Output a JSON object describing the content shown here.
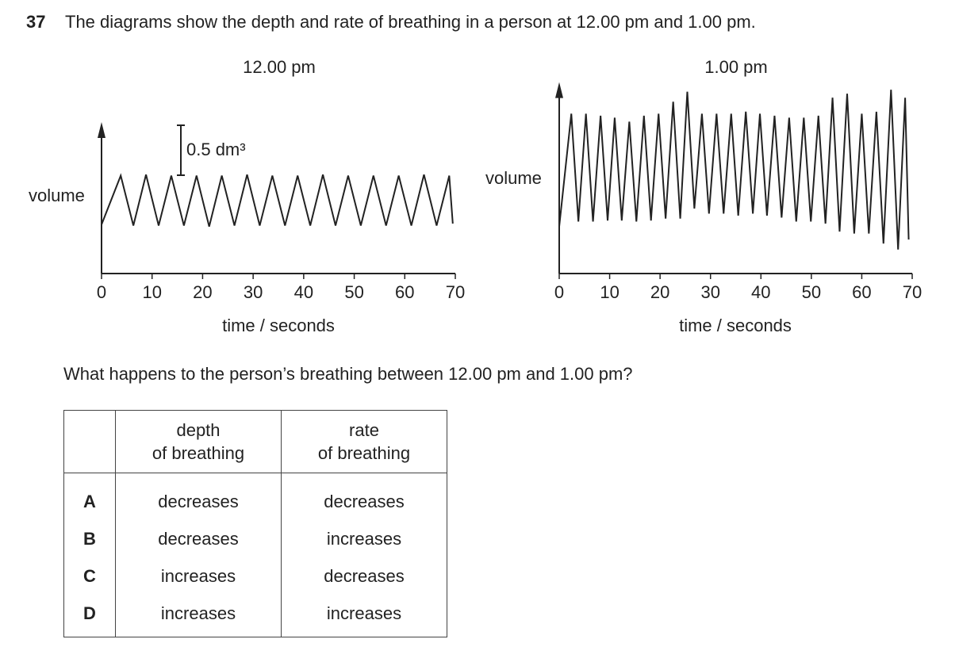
{
  "question": {
    "number": "37",
    "text": "The diagrams show the depth and rate of breathing in a person at 12.00 pm and 1.00 pm.",
    "prompt": "What happens to the person’s breathing between 12.00 pm and 1.00 pm?"
  },
  "chart_data": [
    {
      "type": "line",
      "title": "12.00 pm",
      "y_label": "volume",
      "x_label": "time / seconds",
      "xlim": [
        0,
        70
      ],
      "xticks": [
        0,
        10,
        20,
        30,
        40,
        50,
        60,
        70
      ],
      "ylim": [
        0,
        1.5
      ],
      "scale_bar": {
        "value": 0.5,
        "label": "0.5 dm³"
      },
      "series": [
        {
          "color": "#222222",
          "x": [
            0,
            3.8,
            6.3,
            8.8,
            11.3,
            13.8,
            16.3,
            18.8,
            21.3,
            23.8,
            26.3,
            28.8,
            31.3,
            33.8,
            36.3,
            38.8,
            41.3,
            43.8,
            46.3,
            48.8,
            51.3,
            53.8,
            56.3,
            58.8,
            61.3,
            63.8,
            66.3,
            68.8,
            69.5
          ],
          "values": [
            0.49,
            0.98,
            0.48,
            0.99,
            0.48,
            0.98,
            0.48,
            0.98,
            0.47,
            0.98,
            0.48,
            0.99,
            0.48,
            0.98,
            0.48,
            0.98,
            0.48,
            0.99,
            0.48,
            0.98,
            0.48,
            0.98,
            0.48,
            0.98,
            0.48,
            0.99,
            0.48,
            0.98,
            0.5
          ]
        }
      ]
    },
    {
      "type": "line",
      "title": "1.00 pm",
      "y_label": "volume",
      "x_label": "time / seconds",
      "xlim": [
        0,
        70
      ],
      "xticks": [
        0,
        10,
        20,
        30,
        40,
        50,
        60,
        70
      ],
      "ylim": [
        0,
        1.9
      ],
      "series": [
        {
          "color": "#222222",
          "x": [
            0,
            2.4,
            3.8,
            5.3,
            6.7,
            8.2,
            9.6,
            11.0,
            12.4,
            13.9,
            15.3,
            16.8,
            18.2,
            19.7,
            21.1,
            22.6,
            24.0,
            25.4,
            26.8,
            28.3,
            29.7,
            31.2,
            32.6,
            34.1,
            35.5,
            37.0,
            38.4,
            39.8,
            41.2,
            42.7,
            44.1,
            45.6,
            47.0,
            48.5,
            49.9,
            51.4,
            52.8,
            54.2,
            55.6,
            57.1,
            58.5,
            60.0,
            61.4,
            62.9,
            64.3,
            65.8,
            67.2,
            68.6,
            69.3
          ],
          "values": [
            0.47,
            1.6,
            0.52,
            1.6,
            0.52,
            1.58,
            0.53,
            1.56,
            0.53,
            1.52,
            0.52,
            1.58,
            0.53,
            1.6,
            0.55,
            1.72,
            0.55,
            1.82,
            0.65,
            1.6,
            0.6,
            1.6,
            0.6,
            1.6,
            0.58,
            1.62,
            0.6,
            1.6,
            0.58,
            1.58,
            0.56,
            1.56,
            0.52,
            1.56,
            0.52,
            1.58,
            0.5,
            1.76,
            0.42,
            1.8,
            0.4,
            1.6,
            0.4,
            1.62,
            0.3,
            1.84,
            0.24,
            1.76,
            0.34
          ]
        }
      ]
    }
  ],
  "table": {
    "headers": [
      [
        "depth",
        "of breathing"
      ],
      [
        "rate",
        "of breathing"
      ]
    ],
    "rows": [
      [
        "A",
        "decreases",
        "decreases"
      ],
      [
        "B",
        "decreases",
        "increases"
      ],
      [
        "C",
        "increases",
        "decreases"
      ],
      [
        "D",
        "increases",
        "increases"
      ]
    ]
  }
}
